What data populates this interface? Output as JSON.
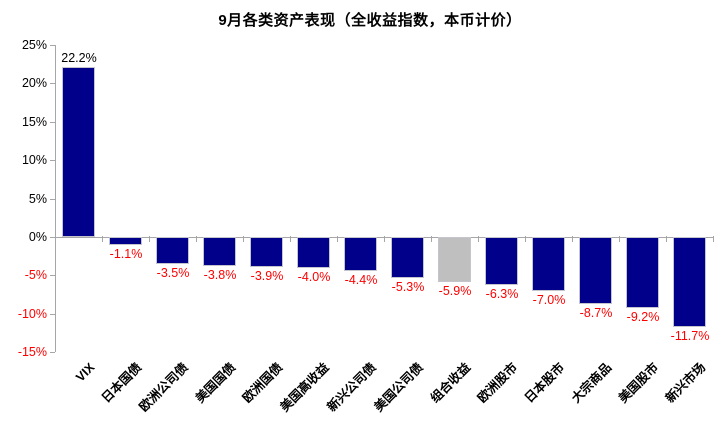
{
  "chart_data": {
    "type": "bar",
    "title": "9月各类资产表现（全收益指数，本币计价）",
    "categories": [
      "VIX",
      "日本国债",
      "欧洲公司债",
      "美国国债",
      "欧洲国债",
      "美国高收益",
      "新兴公司债",
      "美国公司债",
      "组合收益",
      "欧洲股市",
      "日本股市",
      "大宗商品",
      "美国股市",
      "新兴市场"
    ],
    "values": [
      22.2,
      -1.1,
      -3.5,
      -3.8,
      -3.9,
      -4.0,
      -4.4,
      -5.3,
      -5.9,
      -6.3,
      -7.0,
      -8.7,
      -9.2,
      -11.7
    ],
    "data_labels": [
      "22.2%",
      "-1.1%",
      "-3.5%",
      "-3.8%",
      "-3.9%",
      "-4.0%",
      "-4.4%",
      "-5.3%",
      "-5.9%",
      "-6.3%",
      "-7.0%",
      "-8.7%",
      "-9.2%",
      "-11.7%"
    ],
    "highlight_category": "组合收益",
    "highlight_index": 8,
    "xlabel": "",
    "ylabel": "",
    "ylim": [
      -15,
      25
    ],
    "ytick_step": 5,
    "ytick_labels": [
      "25%",
      "20%",
      "15%",
      "10%",
      "5%",
      "0%",
      "-5%",
      "-10%",
      "-15%"
    ],
    "grid": false,
    "legend": false,
    "colors": {
      "bar": "#00008B",
      "highlight_bar": "#BFBFBF",
      "positive_label": "#000000",
      "negative_label": "#FF0000",
      "axis": "#A6A6A6"
    }
  }
}
